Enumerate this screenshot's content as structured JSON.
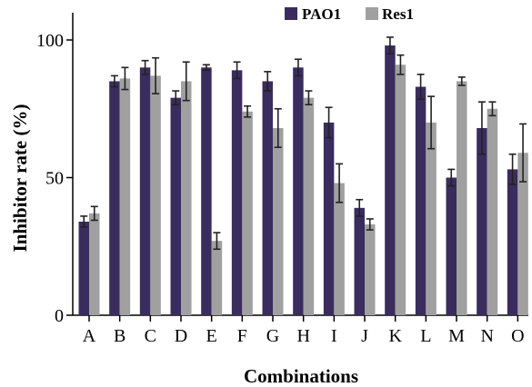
{
  "chart_data": {
    "type": "bar",
    "xlabel": "Combinations",
    "ylabel": "Inhibitor rate (%)",
    "ylim": [
      0,
      110
    ],
    "yticks": [
      0,
      50,
      100
    ],
    "grid": false,
    "legend_position": "top-right",
    "categories": [
      "A",
      "B",
      "C",
      "D",
      "E",
      "F",
      "G",
      "H",
      "I",
      "J",
      "K",
      "L",
      "M",
      "N",
      "O"
    ],
    "series": [
      {
        "name": "PAO1",
        "color": "#3b2c5e",
        "values": [
          34,
          85,
          90,
          79,
          90,
          89,
          85,
          90,
          70,
          39,
          98,
          83,
          50,
          68,
          53
        ],
        "errors": [
          2,
          2,
          2.5,
          2.5,
          1,
          3,
          3.5,
          3,
          5.5,
          3,
          3,
          4.5,
          3,
          9.5,
          5.5
        ]
      },
      {
        "name": "Res1",
        "color": "#a0a0a0",
        "values": [
          37,
          86,
          87,
          85,
          27,
          74,
          68,
          79,
          48,
          33,
          91,
          70,
          85,
          75,
          59
        ],
        "errors": [
          2.5,
          4,
          6.5,
          7,
          3,
          2,
          7,
          2.5,
          7,
          2,
          3.5,
          9.5,
          1.5,
          2.5,
          10.5
        ]
      }
    ]
  }
}
